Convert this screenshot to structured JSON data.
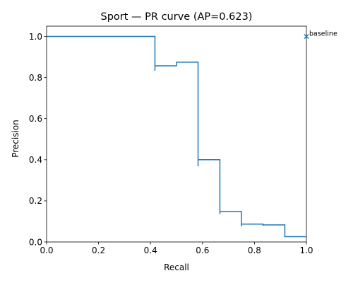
{
  "chart_data": {
    "type": "line",
    "title": "Sport — PR curve (AP=0.623)",
    "xlabel": "Recall",
    "ylabel": "Precision",
    "xlim": [
      0.0,
      1.0
    ],
    "ylim": [
      0.0,
      1.05
    ],
    "x_ticks": [
      0.0,
      0.2,
      0.4,
      0.6,
      0.8,
      1.0
    ],
    "x_tick_labels": [
      "0.0",
      "0.2",
      "0.4",
      "0.6",
      "0.8",
      "1.0"
    ],
    "y_ticks": [
      0.0,
      0.2,
      0.4,
      0.6,
      0.8,
      1.0
    ],
    "y_tick_labels": [
      "0.0",
      "0.2",
      "0.4",
      "0.6",
      "0.8",
      "1.0"
    ],
    "grid": false,
    "series": [
      {
        "color": "#1f77b4",
        "step": "post",
        "points": [
          [
            0.0,
            1.0
          ],
          [
            0.417,
            1.0
          ],
          [
            0.417,
            0.833
          ],
          [
            0.417,
            0.857
          ],
          [
            0.5,
            0.857
          ],
          [
            0.5,
            0.875
          ],
          [
            0.583,
            0.875
          ],
          [
            0.583,
            0.368
          ],
          [
            0.583,
            0.4
          ],
          [
            0.667,
            0.4
          ],
          [
            0.667,
            0.136
          ],
          [
            0.667,
            0.148
          ],
          [
            0.75,
            0.148
          ],
          [
            0.75,
            0.076
          ],
          [
            0.75,
            0.087
          ],
          [
            0.833,
            0.087
          ],
          [
            0.833,
            0.079
          ],
          [
            0.833,
            0.083
          ],
          [
            0.917,
            0.083
          ],
          [
            0.917,
            0.026
          ],
          [
            1.0,
            0.026
          ]
        ]
      }
    ],
    "annotations": [
      {
        "text": "baseline",
        "marker": "x",
        "x": 1.0,
        "y": 1.0,
        "color": "#1f77b4"
      }
    ]
  }
}
